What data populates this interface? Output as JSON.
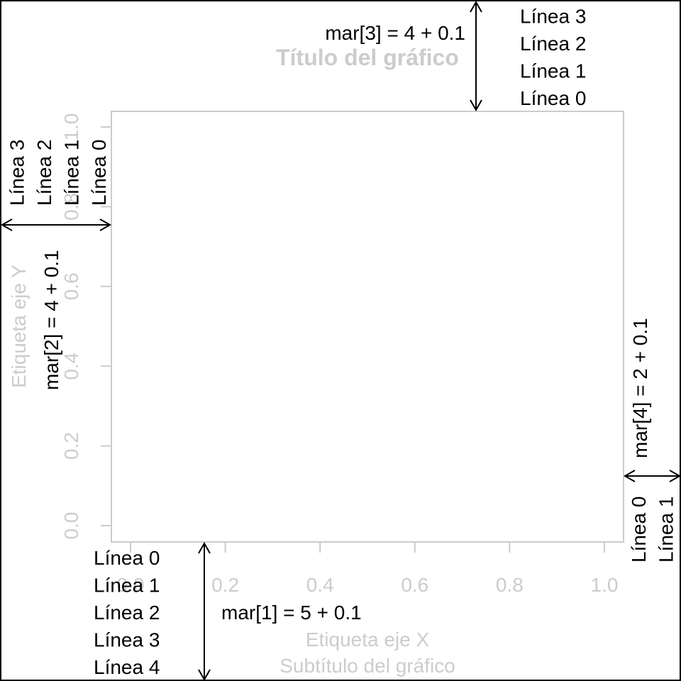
{
  "chart_data": {
    "type": "scatter",
    "title": "Título del gráfico",
    "subtitle": "Subtítulo del gráfico",
    "xlabel": "Etiqueta eje X",
    "ylabel": "Etiqueta eje Y",
    "xlim": [
      0,
      1
    ],
    "ylim": [
      0,
      1
    ],
    "x_ticks": [
      "0.0",
      "0.2",
      "0.4",
      "0.6",
      "0.8",
      "1.0"
    ],
    "y_ticks": [
      "0.0",
      "0.2",
      "0.4",
      "0.6",
      "0.8",
      "1.0"
    ],
    "x_tick_values": [
      0,
      0.2,
      0.4,
      0.6,
      0.8,
      1.0
    ],
    "y_tick_values": [
      0,
      0.2,
      0.4,
      0.6,
      0.8,
      1.0
    ],
    "points": [],
    "grid": false
  },
  "margins": {
    "bottom": {
      "label": "mar[1] = 5 + 0.1",
      "lines": [
        "Línea 0",
        "Línea 1",
        "Línea 2",
        "Línea 3",
        "Línea 4"
      ]
    },
    "left": {
      "label": "mar[2] = 4 + 0.1",
      "lines": [
        "Línea 0",
        "Línea 1",
        "Línea 2",
        "Línea 3"
      ]
    },
    "top": {
      "label": "mar[3] = 4 + 0.1",
      "lines": [
        "Línea 0",
        "Línea 1",
        "Línea 2",
        "Línea 3"
      ]
    },
    "right": {
      "label": "mar[4] = 2 + 0.1",
      "lines": [
        "Línea 0",
        "Línea 1"
      ]
    }
  },
  "colors": {
    "faint": "#cccccc",
    "ink": "#000000",
    "frame": "#000000"
  }
}
